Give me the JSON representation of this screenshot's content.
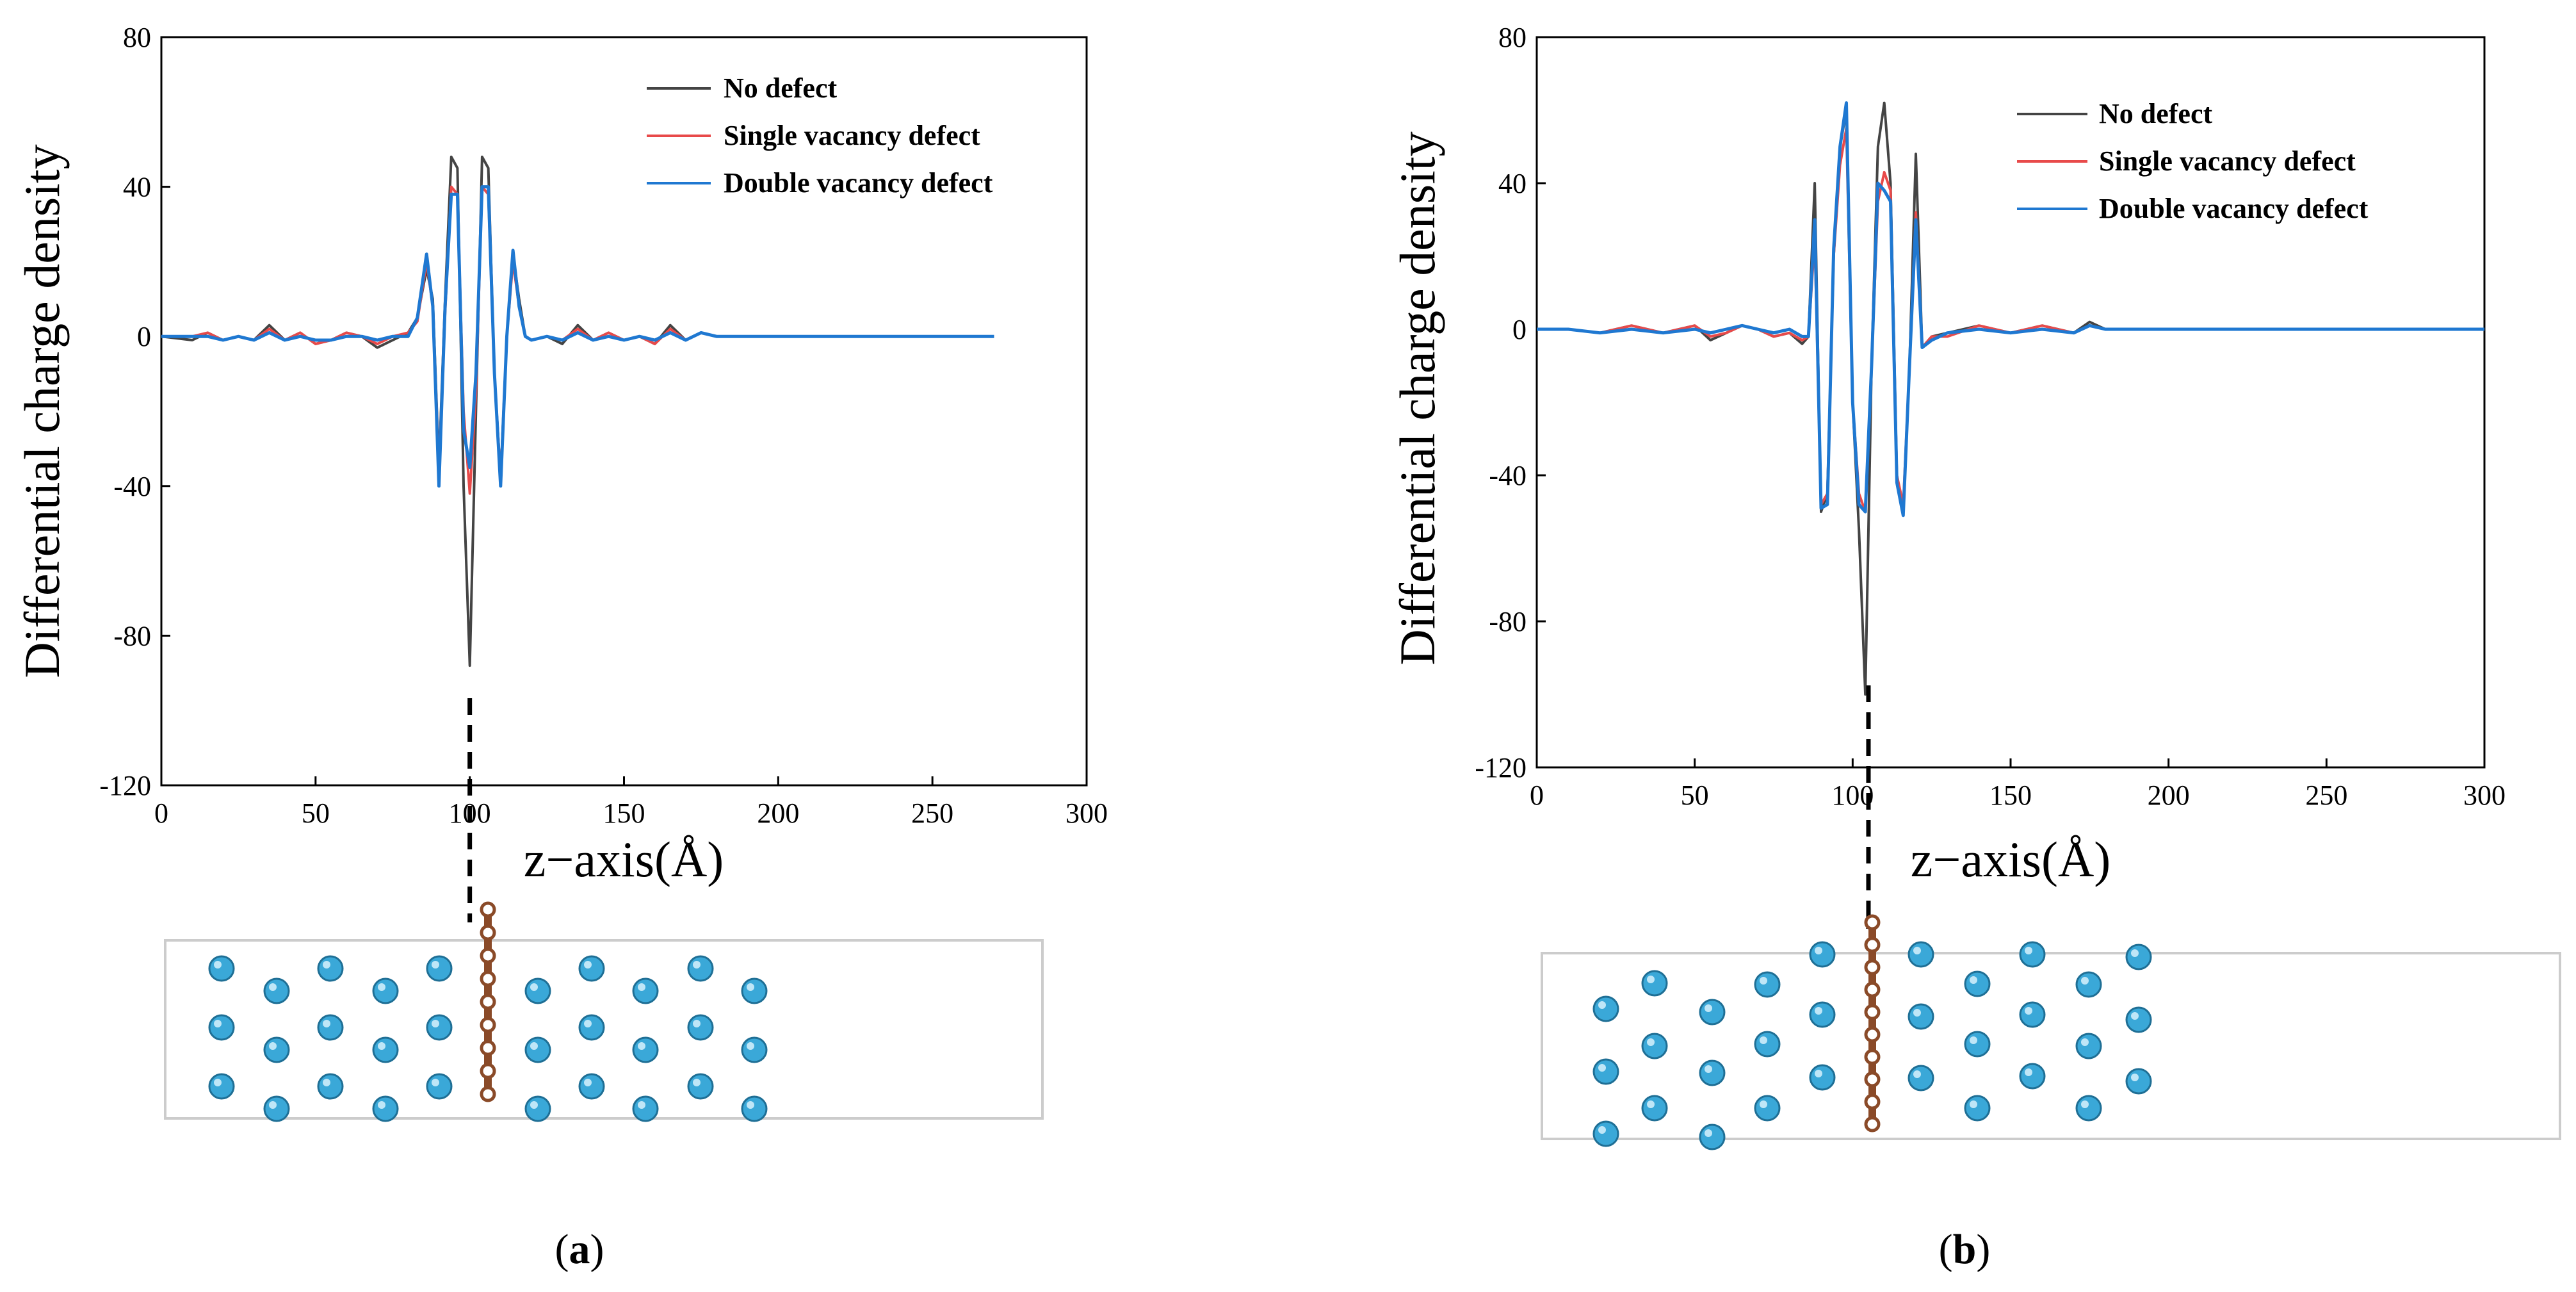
{
  "chart_data": [
    {
      "panel": "a",
      "type": "line",
      "xlabel": "z−axis(Å)",
      "ylabel": "Differential charge density",
      "xlim": [
        0,
        300
      ],
      "ylim": [
        -120,
        80
      ],
      "xticks": [
        "0",
        "50",
        "100",
        "150",
        "200",
        "250",
        "300"
      ],
      "yticks": [
        "80",
        "40",
        "0",
        "-40",
        "-80",
        "-120"
      ],
      "marker_z": 100,
      "series": [
        {
          "name": "No defect",
          "color": "#444444",
          "x": [
            0,
            10,
            15,
            20,
            25,
            30,
            35,
            40,
            45,
            50,
            55,
            60,
            65,
            70,
            75,
            80,
            83,
            86,
            88,
            90,
            92,
            94,
            96,
            98,
            100,
            102,
            104,
            106,
            108,
            110,
            112,
            114,
            116,
            118,
            120,
            125,
            130,
            135,
            140,
            145,
            150,
            155,
            160,
            165,
            170,
            175,
            180,
            185,
            190,
            200,
            220,
            240,
            260,
            270
          ],
          "y": [
            0,
            -1,
            1,
            -1,
            0,
            -1,
            3,
            -1,
            1,
            -2,
            -1,
            1,
            0,
            -3,
            -1,
            1,
            5,
            18,
            10,
            -35,
            10,
            48,
            45,
            -40,
            -88,
            -20,
            48,
            45,
            -10,
            -38,
            0,
            22,
            10,
            0,
            -1,
            0,
            -2,
            3,
            -1,
            1,
            -1,
            0,
            -2,
            3,
            -1,
            1,
            0,
            0,
            0,
            0,
            0,
            0,
            0,
            0
          ]
        },
        {
          "name": "Single vacancy defect",
          "color": "#e84a4a",
          "x": [
            0,
            10,
            15,
            20,
            25,
            30,
            35,
            40,
            45,
            50,
            55,
            60,
            65,
            70,
            75,
            80,
            83,
            86,
            88,
            90,
            92,
            94,
            96,
            98,
            100,
            102,
            104,
            106,
            108,
            110,
            112,
            114,
            116,
            118,
            120,
            125,
            130,
            135,
            140,
            145,
            150,
            155,
            160,
            165,
            170,
            175,
            180,
            185,
            190,
            200,
            220,
            240,
            260,
            270
          ],
          "y": [
            0,
            0,
            1,
            -1,
            0,
            -1,
            2,
            -1,
            1,
            -2,
            -1,
            1,
            0,
            -2,
            0,
            1,
            4,
            20,
            8,
            -36,
            6,
            40,
            38,
            -20,
            -42,
            -15,
            40,
            38,
            -10,
            -38,
            0,
            20,
            8,
            0,
            -1,
            0,
            -1,
            2,
            -1,
            1,
            -1,
            0,
            -2,
            2,
            -1,
            1,
            0,
            0,
            0,
            0,
            0,
            0,
            0,
            0
          ]
        },
        {
          "name": "Double vacancy defect",
          "color": "#1f78d1",
          "x": [
            0,
            10,
            15,
            20,
            25,
            30,
            35,
            40,
            45,
            50,
            55,
            60,
            65,
            70,
            75,
            80,
            83,
            86,
            88,
            90,
            92,
            94,
            96,
            98,
            100,
            102,
            104,
            106,
            108,
            110,
            112,
            114,
            116,
            118,
            120,
            125,
            130,
            135,
            140,
            145,
            150,
            155,
            160,
            165,
            170,
            175,
            180,
            185,
            190,
            200,
            220,
            240,
            260,
            270
          ],
          "y": [
            0,
            0,
            0,
            -1,
            0,
            -1,
            1,
            -1,
            0,
            -1,
            -1,
            0,
            0,
            -1,
            0,
            0,
            5,
            22,
            8,
            -40,
            8,
            38,
            38,
            -25,
            -35,
            -10,
            40,
            40,
            -10,
            -40,
            0,
            23,
            8,
            0,
            -1,
            0,
            -1,
            1,
            -1,
            0,
            -1,
            0,
            -1,
            1,
            -1,
            1,
            0,
            0,
            0,
            0,
            0,
            0,
            0,
            0
          ]
        }
      ]
    },
    {
      "panel": "b",
      "type": "line",
      "xlabel": "z−axis(Å)",
      "ylabel": "Differential charge density",
      "xlim": [
        0,
        300
      ],
      "ylim": [
        -120,
        80
      ],
      "xticks": [
        "0",
        "50",
        "100",
        "150",
        "200",
        "250",
        "300"
      ],
      "yticks": [
        "80",
        "40",
        "0",
        "-40",
        "-80",
        "-120"
      ],
      "marker_z": 105,
      "series": [
        {
          "name": "No defect",
          "color": "#444444",
          "x": [
            0,
            10,
            20,
            30,
            40,
            50,
            55,
            60,
            65,
            70,
            75,
            80,
            84,
            86,
            88,
            90,
            92,
            94,
            96,
            98,
            100,
            102,
            104,
            106,
            108,
            110,
            112,
            114,
            116,
            118,
            120,
            122,
            125,
            130,
            140,
            150,
            160,
            170,
            175,
            180,
            190,
            200,
            220,
            240,
            260,
            300
          ],
          "y": [
            0,
            0,
            -1,
            1,
            -1,
            1,
            -3,
            -1,
            1,
            0,
            -2,
            -1,
            -4,
            -2,
            40,
            -50,
            -45,
            20,
            50,
            60,
            -20,
            -55,
            -100,
            -10,
            50,
            62,
            40,
            -40,
            -50,
            -10,
            48,
            -5,
            -2,
            -1,
            1,
            -1,
            1,
            -1,
            2,
            0,
            0,
            0,
            0,
            0,
            0,
            0
          ]
        },
        {
          "name": "Single vacancy defect",
          "color": "#e84a4a",
          "x": [
            0,
            10,
            20,
            30,
            40,
            50,
            55,
            60,
            65,
            70,
            75,
            80,
            84,
            86,
            88,
            90,
            92,
            94,
            96,
            98,
            100,
            102,
            104,
            106,
            108,
            110,
            112,
            114,
            116,
            118,
            120,
            122,
            125,
            130,
            140,
            150,
            160,
            170,
            175,
            180,
            190,
            200,
            220,
            240,
            258
          ],
          "y": [
            0,
            0,
            -1,
            1,
            -1,
            1,
            -2,
            -1,
            1,
            0,
            -2,
            -1,
            -3,
            -2,
            25,
            -48,
            -45,
            20,
            45,
            55,
            -20,
            -45,
            -50,
            -10,
            35,
            43,
            38,
            -40,
            -48,
            -10,
            32,
            -5,
            -2,
            -2,
            1,
            -1,
            1,
            -1,
            1,
            0,
            0,
            0,
            0,
            0,
            0
          ]
        },
        {
          "name": "Double vacancy defect",
          "color": "#1f78d1",
          "x": [
            0,
            10,
            20,
            30,
            40,
            50,
            55,
            60,
            65,
            70,
            75,
            80,
            84,
            86,
            88,
            90,
            92,
            94,
            96,
            98,
            100,
            102,
            104,
            106,
            108,
            110,
            112,
            114,
            116,
            118,
            120,
            122,
            125,
            130,
            140,
            150,
            160,
            170,
            175,
            180,
            190,
            200,
            220,
            240,
            260,
            300
          ],
          "y": [
            0,
            0,
            -1,
            0,
            -1,
            0,
            -1,
            0,
            1,
            0,
            -1,
            0,
            -2,
            -2,
            30,
            -49,
            -48,
            22,
            50,
            62,
            -20,
            -48,
            -50,
            -10,
            40,
            38,
            35,
            -42,
            -51,
            -10,
            30,
            -5,
            -3,
            -1,
            0,
            -1,
            0,
            -1,
            1,
            0,
            0,
            0,
            0,
            0,
            0,
            0
          ]
        }
      ]
    }
  ],
  "panel_labels": {
    "a": {
      "open": "(",
      "letter": "a",
      "close": ")"
    },
    "b": {
      "open": "(",
      "letter": "b",
      "close": ")"
    }
  },
  "colors": {
    "atom_fill": "#3aa8d8",
    "atom_stroke": "#1f6f95",
    "chain": "#8a4a28",
    "cell_border": "#cccccc"
  }
}
